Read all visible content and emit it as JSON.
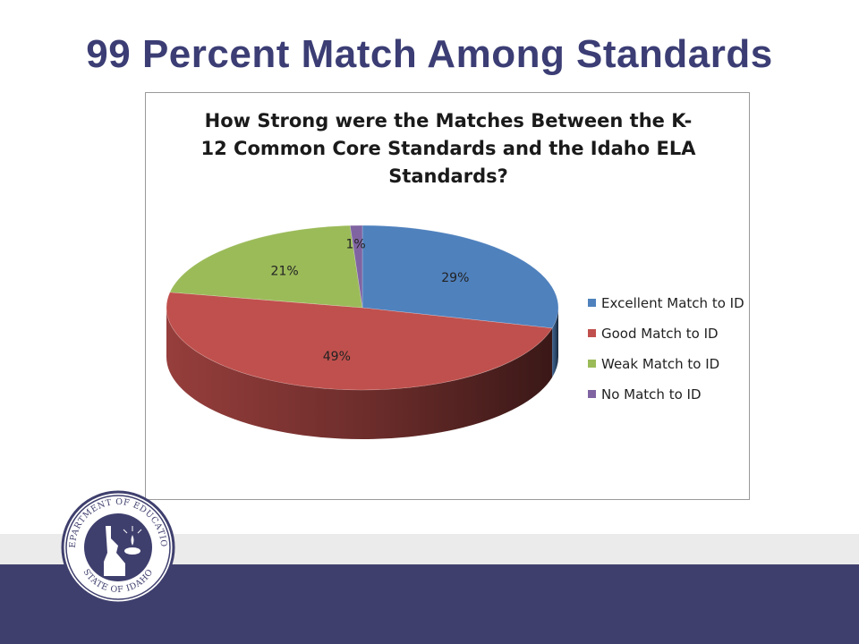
{
  "slide": {
    "title": "99 Percent Match Among Standards"
  },
  "logo": {
    "top_text": "DEPARTMENT OF EDUCATION",
    "bottom_text": "STATE OF IDAHO",
    "icon": "idaho-map-lamp-icon"
  },
  "colors": {
    "title": "#3b3d74",
    "footer": "#3f3f6e",
    "footer_band": "#ebebeb"
  },
  "chart_data": {
    "type": "pie",
    "style": "3d",
    "title": "How Strong were the Matches Between the K-12 Common Core Standards and the Idaho ELA Standards?",
    "legend_position": "right",
    "slices": [
      {
        "label": "Excellent Match to ID",
        "value": 29,
        "data_label": "29%",
        "color": "#4f81bd"
      },
      {
        "label": "Good Match to ID",
        "value": 49,
        "data_label": "49%",
        "color": "#c0504d"
      },
      {
        "label": "Weak Match to ID",
        "value": 21,
        "data_label": "21%",
        "color": "#9bbb59"
      },
      {
        "label": "No Match to ID",
        "value": 1,
        "data_label": "1%",
        "color": "#8064a2"
      }
    ]
  }
}
